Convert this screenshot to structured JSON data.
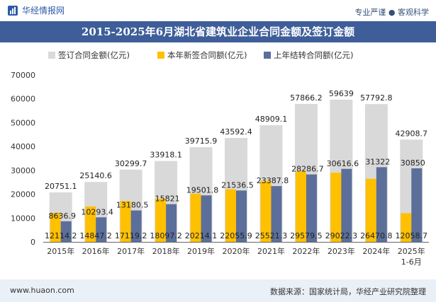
{
  "header": {
    "brand": "华经情报网",
    "slogan": "专业严谨 ● 客观科学"
  },
  "chart_data": {
    "type": "bar",
    "title": "2015-2025年6月湖北省建筑业企业合同金额及签订金额",
    "categories": [
      "2015年",
      "2016年",
      "2017年",
      "2018年",
      "2019年",
      "2020年",
      "2021年",
      "2022年",
      "2023年",
      "2024年",
      "2025年\n1-6月"
    ],
    "series": [
      {
        "name": "签订合同金额(亿元)",
        "values": [
          20751.1,
          25140.6,
          30299.7,
          33918.1,
          39715.9,
          43592.4,
          48909.1,
          57866.2,
          59639,
          57792.8,
          42908.7
        ],
        "color": "#d9d9d9"
      },
      {
        "name": "本年新签合同额(亿元)",
        "values": [
          12114.2,
          14847.2,
          17119.2,
          18097.2,
          20214.1,
          22055.9,
          25521.3,
          29579.5,
          29022.3,
          26470.8,
          12058.7
        ],
        "color": "#ffc000"
      },
      {
        "name": "上年结转合同额(亿元)",
        "values": [
          8636.9,
          10293.4,
          13180.5,
          15821,
          19501.8,
          21536.5,
          23387.8,
          28286.7,
          30616.6,
          31322,
          30850
        ],
        "color": "#5b6f9a"
      }
    ],
    "labels": {
      "total": [
        "20751.1",
        "25140.6",
        "30299.7",
        "33918.1",
        "39715.9",
        "43592.4",
        "48909.1",
        "57866.2",
        "59639",
        "57792.8",
        "42908.7"
      ],
      "new": [
        "12114.2",
        "14847.2",
        "17119.2",
        "18097.2",
        "20214.1",
        "22055.9",
        "25521.3",
        "29579.5",
        "29022.3",
        "26470.8",
        "12058.7"
      ],
      "carry": [
        "8636.9",
        "10293.4",
        "13180.5",
        "15821",
        "19501.8",
        "21536.5",
        "23387.8",
        "28286.7",
        "30616.6",
        "31322",
        "30850"
      ]
    },
    "ylim": [
      0,
      70000
    ],
    "yticks": [
      "0",
      "10000",
      "20000",
      "30000",
      "40000",
      "50000",
      "60000",
      "70000"
    ],
    "legend_position": "top",
    "grid": false
  },
  "footer": {
    "website": "www.huaon.com",
    "source": "数据来源：国家统计局，华经产业研究院整理"
  }
}
